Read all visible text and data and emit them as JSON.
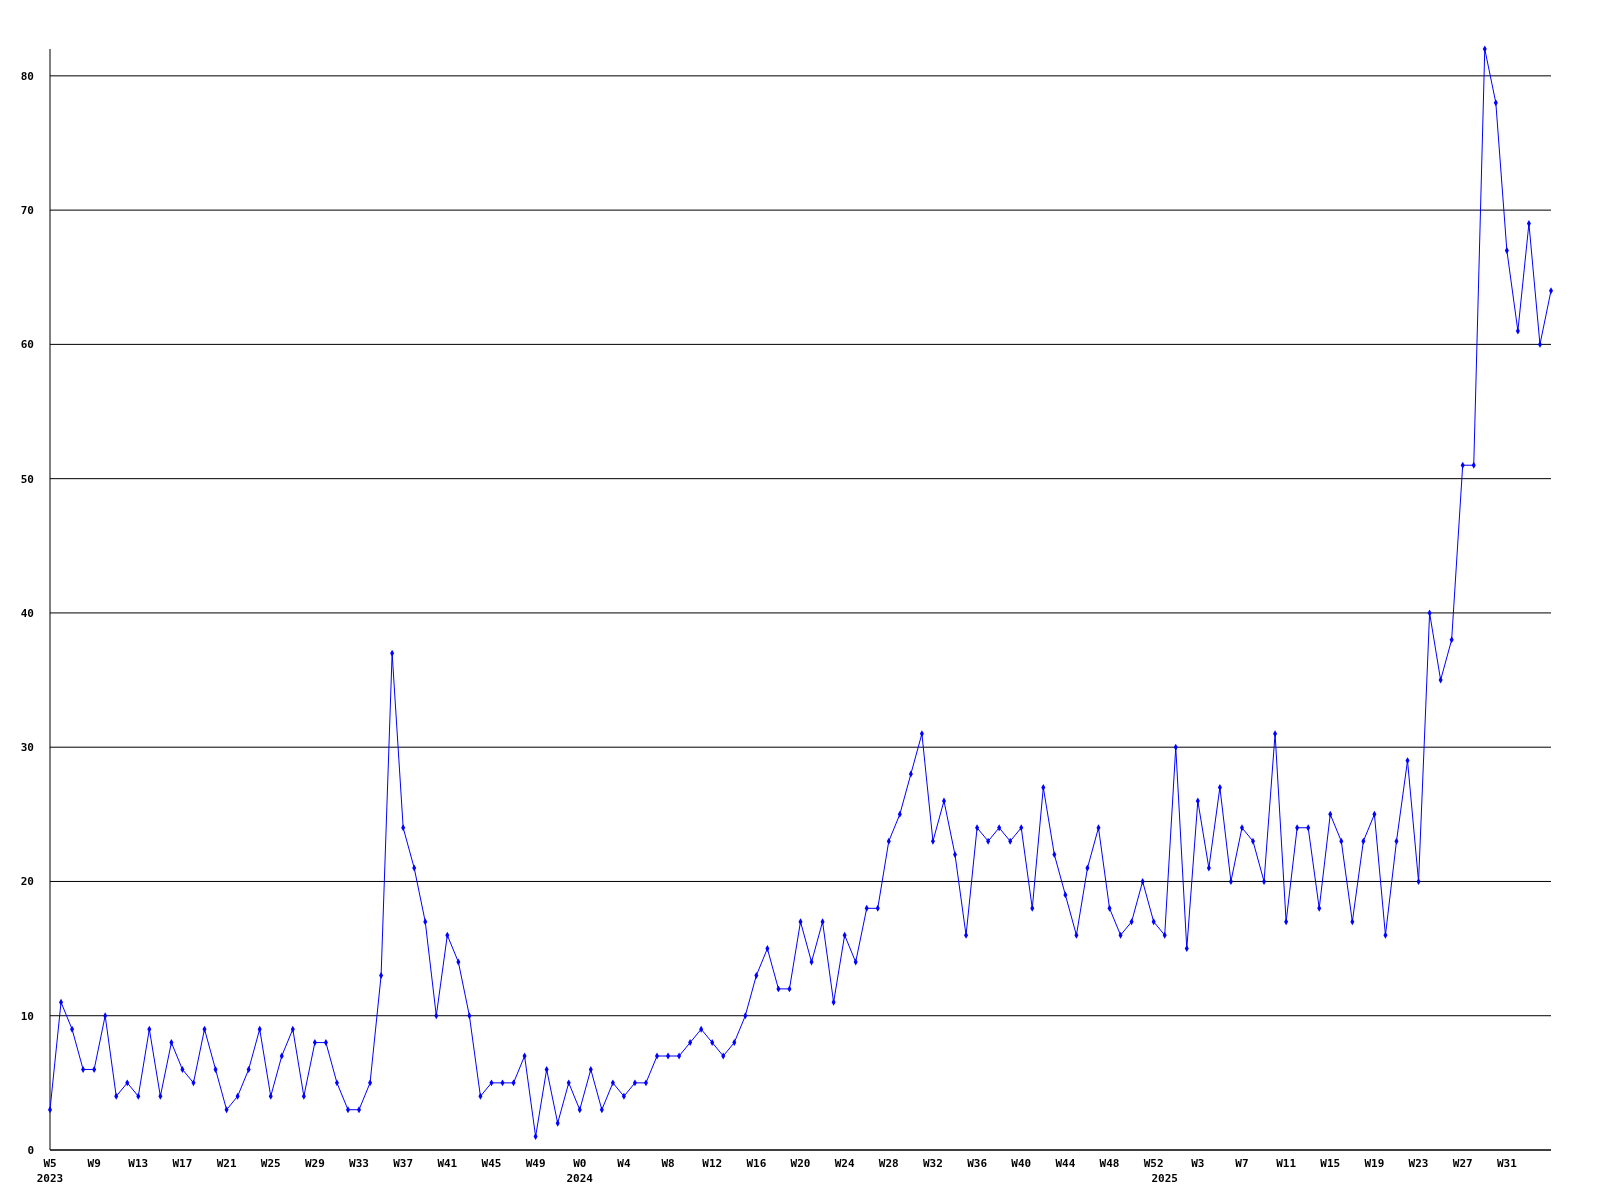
{
  "chart_data": {
    "type": "line",
    "categories": [
      "W5\n2023",
      null,
      null,
      null,
      "W9",
      null,
      null,
      null,
      "W13",
      null,
      null,
      null,
      "W17",
      null,
      null,
      null,
      "W21",
      null,
      null,
      null,
      "W25",
      null,
      null,
      null,
      "W29",
      null,
      null,
      null,
      "W33",
      null,
      null,
      null,
      "W37",
      null,
      null,
      null,
      "W41",
      null,
      null,
      null,
      "W45",
      null,
      null,
      null,
      "W49",
      null,
      null,
      null,
      "W0\n2024",
      null,
      null,
      null,
      "W4",
      null,
      null,
      null,
      "W8",
      null,
      null,
      null,
      "W12",
      null,
      null,
      null,
      "W16",
      null,
      null,
      null,
      "W20",
      null,
      null,
      null,
      "W24",
      null,
      null,
      null,
      "W28",
      null,
      null,
      null,
      "W32",
      null,
      null,
      null,
      "W36",
      null,
      null,
      null,
      "W40",
      null,
      null,
      null,
      "W44",
      null,
      null,
      null,
      "W48",
      null,
      null,
      null,
      "W52",
      "\n2025",
      null,
      null,
      "W3",
      null,
      null,
      null,
      "W7",
      null,
      null,
      null,
      "W11",
      null,
      null,
      null,
      "W15",
      null,
      null,
      null,
      "W19",
      null,
      null,
      null,
      "W23",
      null,
      null,
      null,
      "W27",
      null,
      null,
      null,
      "W31",
      null,
      null,
      null,
      null
    ],
    "series": [
      {
        "color": "#0000ff",
        "values": [
          3,
          11,
          9,
          6,
          6,
          10,
          4,
          5,
          4,
          9,
          4,
          8,
          6,
          5,
          9,
          6,
          3,
          4,
          6,
          9,
          4,
          7,
          9,
          4,
          8,
          8,
          5,
          3,
          3,
          5,
          13,
          37,
          24,
          21,
          17,
          10,
          16,
          14,
          10,
          4,
          5,
          5,
          5,
          7,
          1,
          6,
          2,
          5,
          3,
          6,
          3,
          5,
          4,
          5,
          5,
          7,
          7,
          7,
          8,
          9,
          8,
          7,
          8,
          10,
          13,
          15,
          12,
          12,
          17,
          14,
          17,
          11,
          16,
          14,
          18,
          18,
          23,
          25,
          28,
          31,
          23,
          26,
          22,
          16,
          24,
          23,
          24,
          23,
          24,
          18,
          27,
          22,
          19,
          16,
          21,
          24,
          18,
          16,
          17,
          20,
          17,
          16,
          30,
          15,
          26,
          21,
          27,
          20,
          24,
          23,
          20,
          31,
          17,
          24,
          24,
          18,
          25,
          23,
          17,
          23,
          25,
          16,
          23,
          29,
          20,
          40,
          35,
          38,
          51,
          51,
          82,
          78,
          67,
          61,
          69,
          60,
          64
        ]
      }
    ],
    "ylim": [
      0,
      82
    ],
    "yticks": [
      0,
      10,
      20,
      30,
      40,
      50,
      60,
      70,
      80
    ],
    "grid": "y",
    "marker": "diamond",
    "line_style": "solid"
  }
}
